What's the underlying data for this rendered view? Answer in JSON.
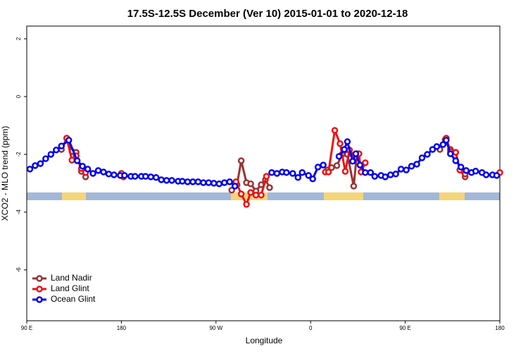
{
  "chart_data": {
    "type": "line",
    "title": "17.5S-12.5S December (Ver 10)   2015-01-01 to 2020-12-18",
    "x_label": "Longitude",
    "y_label": "XCO2 - MLO trend (ppm)",
    "xlim": [
      90,
      540
    ],
    "ylim": [
      -7.76,
      2.44
    ],
    "xticks": [
      {
        "value": 90,
        "label": "90 E"
      },
      {
        "value": 180,
        "label": "180"
      },
      {
        "value": 270,
        "label": "90 W"
      },
      {
        "value": 360,
        "label": "0"
      },
      {
        "value": 450,
        "label": "90 E"
      },
      {
        "value": 540,
        "label": "180"
      }
    ],
    "yticks": [
      -6,
      -4,
      -2,
      0,
      2
    ],
    "legend": "bottom-left",
    "series": [
      {
        "name": "Land Nadir",
        "color": "#993333",
        "x": [
          123,
          128,
          133,
          137,
          142,
          146,
          215,
          285,
          290,
          294,
          299,
          303,
          308,
          313,
          317,
          321,
          350,
          376,
          380,
          385,
          390,
          395,
          401,
          404,
          440,
          483,
          488,
          493,
          498,
          502,
          507
        ],
        "values": [
          -1.83,
          -1.44,
          -1.9,
          -1.93,
          -2.59,
          -2.78,
          null,
          -3.24,
          -3.05,
          -2.22,
          -2.98,
          -3.02,
          -3.27,
          -3.05,
          -2.88,
          -3.15,
          null,
          -2.54,
          -2.46,
          -2.39,
          -2.0,
          -2.0,
          -3.1,
          -1.98,
          null,
          -1.83,
          -1.49,
          -1.83,
          -1.93,
          -2.54,
          -2.78
        ]
      },
      {
        "name": "Land Glint",
        "color": "#ee1111",
        "x": [
          128,
          133,
          137,
          142,
          146,
          160,
          180,
          182,
          235,
          289,
          294,
          299,
          303,
          308,
          313,
          318,
          345,
          374,
          377,
          383,
          388,
          393,
          397,
          402,
          406,
          408,
          412,
          450,
          489,
          493,
          498,
          502,
          507,
          520,
          540
        ],
        "values": [
          -1.44,
          -2.2,
          -2.05,
          -2.49,
          -2.63,
          null,
          -2.66,
          -2.78,
          null,
          -2.95,
          -3.37,
          -3.73,
          -3.32,
          -3.41,
          -3.41,
          -2.76,
          null,
          -2.61,
          -2.61,
          -1.17,
          -1.63,
          -2.59,
          -1.85,
          -2.1,
          -1.98,
          -2.61,
          -2.29,
          null,
          -1.44,
          -1.9,
          -1.93,
          -2.54,
          -2.68,
          null,
          -2.63
        ]
      },
      {
        "name": "Ocean Glint",
        "color": "#0000ee",
        "x": [
          93,
          98,
          103,
          108,
          113,
          118,
          123,
          130,
          138,
          143,
          148,
          153,
          158,
          163,
          168,
          173,
          179,
          183,
          189,
          193,
          199,
          203,
          208,
          213,
          218,
          223,
          228,
          234,
          238,
          243,
          248,
          253,
          258,
          263,
          268,
          273,
          278,
          283,
          288,
          305,
          323,
          328,
          333,
          337,
          343,
          348,
          352,
          358,
          362,
          367,
          372,
          380,
          387,
          392,
          395,
          400,
          403,
          407,
          412,
          417,
          421,
          427,
          431,
          436,
          441,
          446,
          451,
          456,
          461,
          466,
          471,
          476,
          480,
          486,
          489,
          493,
          498,
          503,
          508,
          513,
          517,
          523,
          527,
          533,
          537
        ],
        "values": [
          -2.51,
          -2.39,
          -2.32,
          -2.15,
          -2.0,
          -1.85,
          -1.71,
          -1.51,
          -2.22,
          -2.41,
          -2.51,
          -2.66,
          -2.56,
          -2.61,
          -2.68,
          -2.71,
          -2.73,
          -2.73,
          -2.76,
          -2.76,
          -2.76,
          -2.76,
          -2.78,
          -2.8,
          -2.88,
          -2.9,
          -2.9,
          -2.93,
          -2.93,
          -2.95,
          -2.95,
          -2.95,
          -2.98,
          -2.98,
          -3.0,
          -3.02,
          -2.98,
          -2.95,
          -3.1,
          null,
          -2.63,
          -2.66,
          -2.61,
          -2.63,
          -2.66,
          -2.8,
          -2.63,
          -2.73,
          -2.85,
          -2.44,
          -2.37,
          null,
          -2.07,
          -1.83,
          -1.56,
          -2.24,
          -1.98,
          -2.37,
          -2.63,
          -2.63,
          -2.76,
          -2.73,
          -2.78,
          -2.71,
          -2.68,
          -2.51,
          -2.54,
          -2.41,
          -2.34,
          -2.12,
          -2.0,
          -1.83,
          -1.73,
          -1.66,
          -1.51,
          -1.98,
          -2.22,
          -2.44,
          -2.56,
          -2.63,
          -2.58,
          -2.63,
          -2.71,
          -2.71,
          -2.73
        ]
      }
    ]
  }
}
